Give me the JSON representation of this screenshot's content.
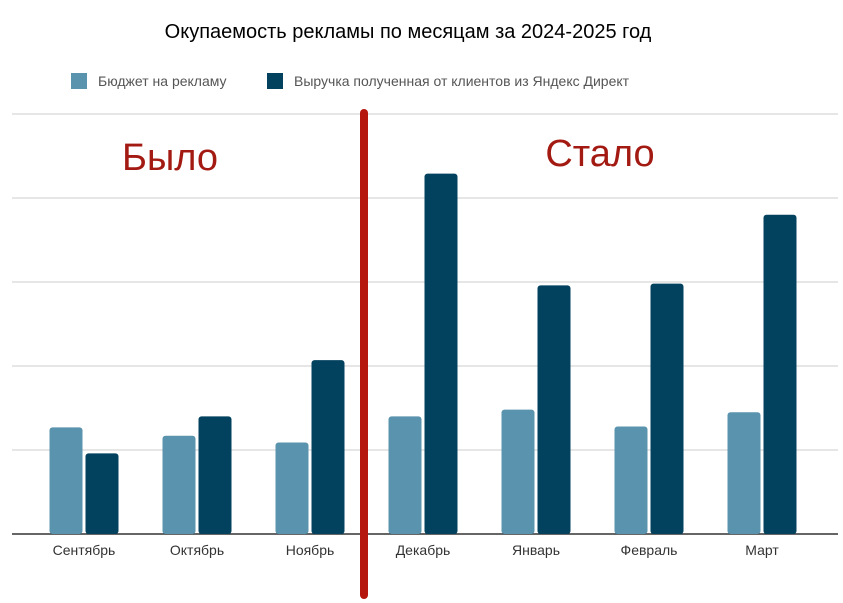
{
  "chart_data": {
    "type": "bar",
    "title": "Окупаемость рекламы по месяцам за 2024-2025 год",
    "xlabel": "",
    "ylabel": "",
    "categories": [
      "Сентябрь",
      "Октябрь",
      "Ноябрь",
      "Декабрь",
      "Январь",
      "Февраль",
      "Март"
    ],
    "series": [
      {
        "name": "Бюджет на рекламу",
        "color": "#5a93ae",
        "values": [
          1.27,
          1.17,
          1.09,
          1.4,
          1.48,
          1.28,
          1.45
        ]
      },
      {
        "name": "Выручка полученная от клиентов из Яндекс Директ",
        "color": "#03425f",
        "values": [
          0.96,
          1.4,
          2.07,
          4.29,
          2.96,
          2.98,
          3.8
        ]
      }
    ],
    "ylim": [
      0,
      5
    ],
    "grid": true,
    "y_tick_labels_shown": false,
    "legend_position": "top-left",
    "annotations": [
      {
        "text": "Было",
        "color": "#a31a12"
      },
      {
        "text": "Стало",
        "color": "#a31a12"
      }
    ],
    "divider": {
      "between": [
        "Ноябрь",
        "Декабрь"
      ],
      "color": "#b5170e"
    }
  }
}
